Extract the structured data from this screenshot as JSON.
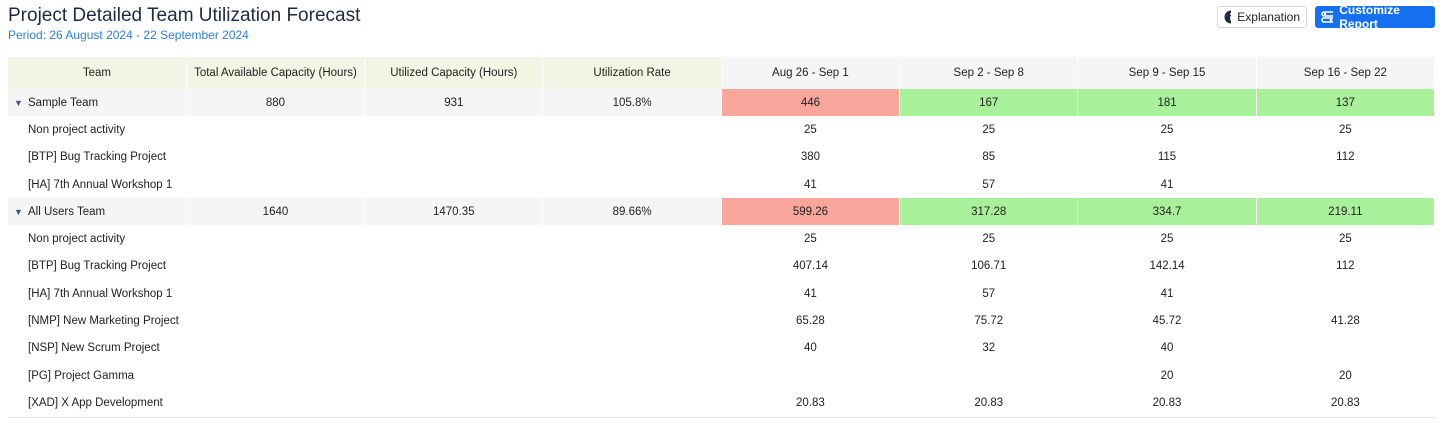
{
  "header": {
    "title": "Project Detailed Team Utilization Forecast",
    "period": "Period: 26 August 2024 - 22 September 2024",
    "buttons": [
      "Explanation",
      "Customize Report"
    ]
  },
  "table": {
    "columns": [
      "Team",
      "Total Available Capacity (Hours)",
      "Utilized Capacity (Hours)",
      "Utilization Rate",
      "Aug 26 - Sep 1",
      "Sep 2 - Sep 8",
      "Sep 9 - Sep 15",
      "Sep 16 - Sep 22"
    ],
    "over_color": "#f8a59c",
    "under_color": "#a8f09a",
    "rows": [
      {
        "team": true,
        "cells": [
          "Sample Team",
          "880",
          "931",
          "105.8%",
          "446",
          "167",
          "181",
          "137"
        ],
        "status": [
          "over",
          "under",
          "under",
          "under"
        ]
      },
      {
        "cells": [
          "Non project activity",
          null,
          null,
          null,
          "25",
          "25",
          "25",
          "25"
        ]
      },
      {
        "cells": [
          "[BTP] Bug Tracking Project",
          null,
          null,
          null,
          "380",
          "85",
          "115",
          "112"
        ]
      },
      {
        "cells": [
          "[HA] 7th Annual Workshop 1",
          null,
          null,
          null,
          "41",
          "57",
          "41",
          null
        ]
      },
      {
        "team": true,
        "cells": [
          "All Users Team",
          "1640",
          "1470.35",
          "89.66%",
          "599.26",
          "317.28",
          "334.7",
          "219.11"
        ],
        "status": [
          "over",
          "under",
          "under",
          "under"
        ]
      },
      {
        "cells": [
          "Non project activity",
          null,
          null,
          null,
          "25",
          "25",
          "25",
          "25"
        ]
      },
      {
        "cells": [
          "[BTP] Bug Tracking Project",
          null,
          null,
          null,
          "407.14",
          "106.71",
          "142.14",
          "112"
        ]
      },
      {
        "cells": [
          "[HA] 7th Annual Workshop 1",
          null,
          null,
          null,
          "41",
          "57",
          "41",
          null
        ]
      },
      {
        "cells": [
          "[NMP] New Marketing Project",
          null,
          null,
          null,
          "65.28",
          "75.72",
          "45.72",
          "41.28"
        ]
      },
      {
        "cells": [
          "[NSP] New Scrum Project",
          null,
          null,
          null,
          "40",
          "32",
          "40",
          null
        ]
      },
      {
        "cells": [
          "[PG] Project Gamma",
          null,
          null,
          null,
          null,
          null,
          "20",
          "20"
        ]
      },
      {
        "cells": [
          "[XAD] X App Development",
          null,
          null,
          null,
          "20.83",
          "20.83",
          "20.83",
          "20.83"
        ]
      }
    ]
  }
}
